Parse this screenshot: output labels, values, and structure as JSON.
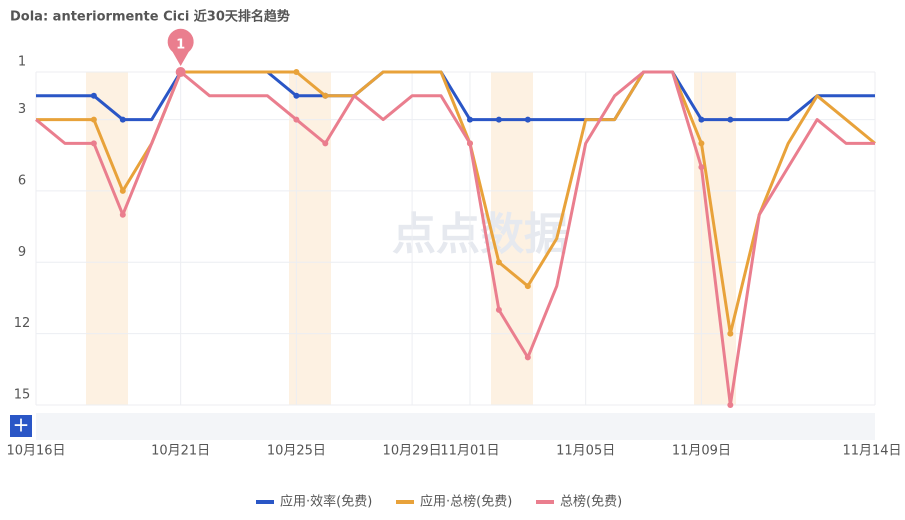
{
  "chart_data": {
    "type": "line",
    "title": "Dola: anteriormente Cici 近30天排名趋势",
    "watermark": "点点数据",
    "annotation": "1",
    "categories": [
      "10月16日",
      null,
      null,
      null,
      null,
      "10月21日",
      null,
      null,
      null,
      "10月25日",
      null,
      null,
      null,
      "10月29日",
      null,
      "11月01日",
      null,
      null,
      null,
      "11月05日",
      null,
      null,
      null,
      "11月09日",
      null,
      null,
      null,
      null,
      null,
      "11月14日"
    ],
    "ylim": [
      1,
      15
    ],
    "yticks": [
      1,
      3,
      6,
      9,
      12,
      15
    ],
    "inverted": true,
    "grid": true,
    "series": [
      {
        "name": "应用·效率(免费)",
        "color": "#2a56c6",
        "values": [
          2,
          2,
          2,
          3,
          3,
          1,
          1,
          1,
          1,
          2,
          2,
          2,
          1,
          1,
          1,
          3,
          3,
          3,
          3,
          3,
          3,
          1,
          1,
          3,
          3,
          3,
          3,
          2,
          2,
          2
        ]
      },
      {
        "name": "应用·总榜(免费)",
        "color": "#e8a23a",
        "values": [
          3,
          3,
          3,
          6,
          4,
          1,
          1,
          1,
          1,
          1,
          2,
          2,
          1,
          1,
          1,
          4,
          9,
          10,
          8,
          3,
          3,
          1,
          1,
          4,
          12,
          7,
          4,
          2,
          3,
          4
        ]
      },
      {
        "name": "总榜(免费)",
        "color": "#ea7e8e",
        "values": [
          3,
          4,
          4,
          7,
          4,
          1,
          2,
          2,
          2,
          3,
          4,
          2,
          3,
          2,
          2,
          4,
          11,
          13,
          10,
          4,
          2,
          1,
          1,
          5,
          15,
          7,
          5,
          3,
          4,
          4
        ]
      }
    ]
  }
}
